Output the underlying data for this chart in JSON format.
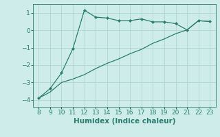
{
  "x": [
    8,
    9,
    10,
    11,
    12,
    13,
    14,
    15,
    16,
    17,
    18,
    19,
    20,
    21,
    22,
    23
  ],
  "y_curve": [
    -3.9,
    -3.35,
    -2.45,
    -1.05,
    1.15,
    0.75,
    0.7,
    0.55,
    0.55,
    0.65,
    0.48,
    0.48,
    0.38,
    0.02,
    0.55,
    0.5
  ],
  "y_line": [
    -3.9,
    -3.55,
    -3.0,
    -2.8,
    -2.55,
    -2.2,
    -1.9,
    -1.65,
    -1.35,
    -1.1,
    -0.75,
    -0.5,
    -0.2,
    0.02,
    0.55,
    0.5
  ],
  "xlim": [
    7.5,
    23.5
  ],
  "ylim": [
    -4.4,
    1.5
  ],
  "xticks": [
    8,
    9,
    10,
    11,
    12,
    13,
    14,
    15,
    16,
    17,
    18,
    19,
    20,
    21,
    22,
    23
  ],
  "yticks": [
    -4,
    -3,
    -2,
    -1,
    0,
    1
  ],
  "xlabel": "Humidex (Indice chaleur)",
  "line_color": "#2a7d6e",
  "bg_color": "#ceecea",
  "grid_color": "#b0d5d0",
  "tick_fontsize": 6.5,
  "label_fontsize": 7.5
}
